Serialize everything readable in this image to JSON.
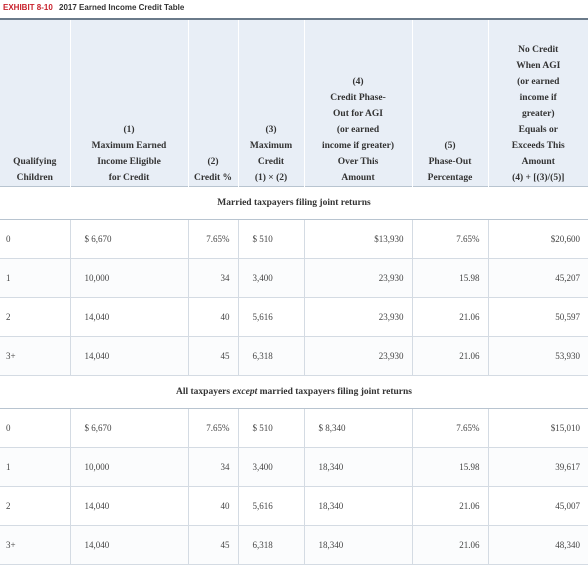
{
  "exhibit": {
    "label": "EXHIBIT 8-10",
    "title": "2017 Earned Income Credit Table"
  },
  "headers": {
    "col0": [
      "Qualifying",
      "Children"
    ],
    "col1": [
      "(1)",
      "Maximum Earned",
      "Income Eligible",
      "for Credit"
    ],
    "col2": [
      "(2)",
      "Credit %"
    ],
    "col3": [
      "(3)",
      "Maximum",
      "Credit",
      "(1) × (2)"
    ],
    "col4": [
      "(4)",
      "Credit Phase-",
      "Out for AGI",
      "(or earned",
      "income if greater)",
      "Over This",
      "Amount"
    ],
    "col5": [
      "(5)",
      "Phase-Out",
      "Percentage"
    ],
    "col6": [
      "No Credit",
      "When AGI",
      "(or earned",
      "income if",
      "greater)",
      "Equals or",
      "Exceeds This",
      "Amount",
      "(4) + [(3)/(5)]"
    ]
  },
  "sections": [
    {
      "title_parts": [
        "Married taxpayers filing joint returns"
      ],
      "rows": [
        [
          "0",
          "$ 6,670",
          "7.65%",
          "$ 510",
          "$13,930",
          "7.65%",
          "$20,600"
        ],
        [
          "1",
          "10,000",
          "34",
          "3,400",
          "23,930",
          "15.98",
          "45,207"
        ],
        [
          "2",
          "14,040",
          "40",
          "5,616",
          "23,930",
          "21.06",
          "50,597"
        ],
        [
          "3+",
          "14,040",
          "45",
          "6,318",
          "23,930",
          "21.06",
          "53,930"
        ]
      ]
    },
    {
      "title_parts": [
        "All taxpayers ",
        "except",
        " married taxpayers filing joint returns"
      ],
      "rows": [
        [
          "0",
          "$ 6,670",
          "7.65%",
          "$ 510",
          "$ 8,340",
          "7.65%",
          "$15,010"
        ],
        [
          "1",
          "10,000",
          "34",
          "3,400",
          "18,340",
          "15.98",
          "39,617"
        ],
        [
          "2",
          "14,040",
          "40",
          "5,616",
          "18,340",
          "21.06",
          "45,007"
        ],
        [
          "3+",
          "14,040",
          "45",
          "6,318",
          "18,340",
          "21.06",
          "48,340"
        ]
      ]
    }
  ]
}
